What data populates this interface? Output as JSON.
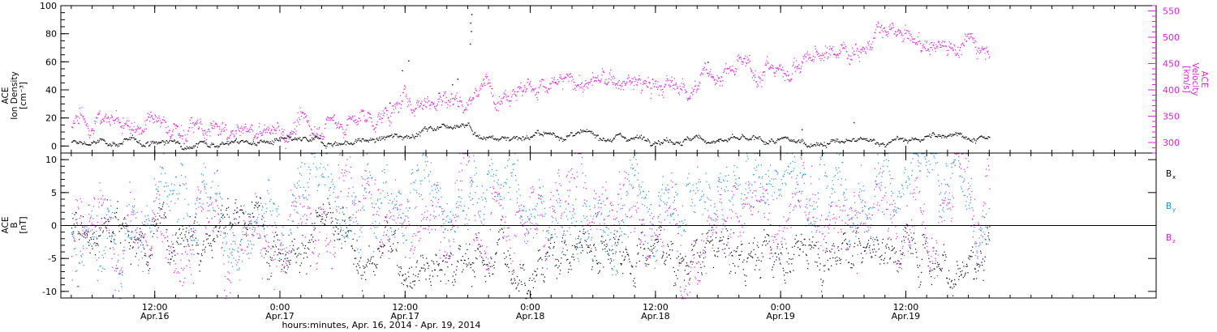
{
  "chart_data": [
    {
      "type": "scatter",
      "panel": "top",
      "ylabel_left": [
        "ACE",
        "Ion Density",
        "[cm⁻³]"
      ],
      "ylabel_right": [
        "ACE",
        "Velocity",
        "[km/s]"
      ],
      "ylim_left": [
        -5,
        100
      ],
      "yticks_left": [
        0,
        20,
        40,
        60,
        80,
        100
      ],
      "ylim_right": [
        280,
        560
      ],
      "yticks_right": [
        300,
        350,
        400,
        450,
        500,
        550
      ],
      "colors": {
        "density": "#000000",
        "velocity": "#e020e0"
      },
      "series": [
        {
          "name": "Ion Density",
          "axis": "left",
          "color": "#000000",
          "anchors": [
            [
              -8,
              2
            ],
            [
              -3,
              3
            ],
            [
              0,
              3
            ],
            [
              6,
              3
            ],
            [
              12,
              3
            ],
            [
              18,
              3
            ],
            [
              22,
              5
            ],
            [
              24,
              8
            ],
            [
              26,
              12
            ],
            [
              28,
              16
            ],
            [
              30,
              18
            ],
            [
              30.5,
              10
            ],
            [
              31,
              7
            ],
            [
              33,
              6
            ],
            [
              36,
              8
            ],
            [
              40,
              8
            ],
            [
              44,
              7
            ],
            [
              48,
              6
            ],
            [
              52,
              5
            ],
            [
              56,
              4
            ],
            [
              60,
              3
            ],
            [
              64,
              3
            ],
            [
              68,
              3
            ],
            [
              72,
              4
            ],
            [
              74,
              6
            ],
            [
              76,
              8
            ],
            [
              77,
              12
            ],
            [
              78,
              6
            ],
            [
              80,
              4
            ]
          ],
          "noise": 1.5,
          "count": 1300,
          "outliers": [
            [
              22.5,
              31
            ],
            [
              23.7,
              54
            ],
            [
              24.3,
              61
            ],
            [
              27.2,
              38
            ],
            [
              28.5,
              44
            ],
            [
              29,
              48
            ],
            [
              30.2,
              73
            ],
            [
              30.3,
              82
            ],
            [
              30.35,
              94
            ],
            [
              30.25,
              88
            ],
            [
              53,
              60
            ],
            [
              54,
              5
            ],
            [
              62,
              12
            ],
            [
              67,
              17
            ]
          ]
        },
        {
          "name": "Velocity",
          "axis": "right",
          "color": "#e020e0",
          "anchors": [
            [
              -8,
              345
            ],
            [
              -3,
              340
            ],
            [
              0,
              330
            ],
            [
              6,
              320
            ],
            [
              9,
              315
            ],
            [
              12,
              325
            ],
            [
              16,
              335
            ],
            [
              20,
              345
            ],
            [
              22,
              350
            ],
            [
              24,
              375
            ],
            [
              26,
              385
            ],
            [
              28,
              385
            ],
            [
              30,
              385
            ],
            [
              31,
              405
            ],
            [
              34,
              410
            ],
            [
              38,
              405
            ],
            [
              40,
              415
            ],
            [
              44,
              415
            ],
            [
              48,
              405
            ],
            [
              50,
              405
            ],
            [
              52,
              415
            ],
            [
              54,
              435
            ],
            [
              57,
              440
            ],
            [
              60,
              440
            ],
            [
              62,
              455
            ],
            [
              64,
              465
            ],
            [
              66,
              480
            ],
            [
              68,
              490
            ],
            [
              70,
              505
            ],
            [
              72,
              495
            ],
            [
              74,
              485
            ],
            [
              76,
              490
            ],
            [
              78,
              490
            ],
            [
              80,
              490
            ]
          ],
          "noise": 12,
          "count": 1800
        }
      ]
    },
    {
      "type": "scatter",
      "panel": "bottom",
      "ylabel": [
        "ACE",
        "B",
        "[nT]"
      ],
      "ylim": [
        -11,
        11
      ],
      "yticks": [
        -10,
        -5,
        0,
        5,
        10
      ],
      "zero_line": true,
      "legend_placement": "right",
      "colors": {
        "bx": "#000000",
        "by": "#1a90e0",
        "bz": "#e020e0"
      },
      "series": [
        {
          "name": "Bx",
          "legend_label": "B",
          "legend_sub": "x",
          "color": "#000000",
          "anchors": [
            [
              -8,
              0
            ],
            [
              -4,
              -1
            ],
            [
              0,
              -1
            ],
            [
              4,
              1
            ],
            [
              8,
              1
            ],
            [
              10,
              0
            ],
            [
              12,
              -2
            ],
            [
              14,
              -1
            ],
            [
              16,
              0
            ],
            [
              18,
              -3
            ],
            [
              20,
              -5
            ],
            [
              22,
              -4
            ],
            [
              24,
              -5
            ],
            [
              26,
              -4
            ],
            [
              28,
              -6
            ],
            [
              30,
              -5
            ],
            [
              32,
              -4
            ],
            [
              36,
              -6
            ],
            [
              40,
              -3
            ],
            [
              44,
              -2
            ],
            [
              48,
              -3
            ],
            [
              52,
              -5
            ],
            [
              56,
              -4
            ],
            [
              60,
              -4
            ],
            [
              64,
              -3
            ],
            [
              66,
              -2
            ],
            [
              68,
              -3
            ],
            [
              70,
              -3
            ],
            [
              72,
              -2
            ],
            [
              74,
              -4
            ],
            [
              76,
              -5
            ],
            [
              78,
              -5
            ],
            [
              80,
              -5
            ]
          ],
          "noise": 2.2,
          "count": 1600
        },
        {
          "name": "By",
          "legend_label": "B",
          "legend_sub": "y",
          "color": "#1a90e0",
          "anchors": [
            [
              -8,
              -2
            ],
            [
              -4,
              1
            ],
            [
              0,
              2
            ],
            [
              2,
              0
            ],
            [
              6,
              2
            ],
            [
              10,
              3
            ],
            [
              12,
              0
            ],
            [
              14,
              6
            ],
            [
              16,
              6
            ],
            [
              18,
              5
            ],
            [
              20,
              7
            ],
            [
              22,
              4
            ],
            [
              24,
              2
            ],
            [
              26,
              8
            ],
            [
              28,
              6
            ],
            [
              30,
              4
            ],
            [
              32,
              6
            ],
            [
              36,
              2
            ],
            [
              40,
              0
            ],
            [
              44,
              -2
            ],
            [
              46,
              5
            ],
            [
              48,
              3
            ],
            [
              50,
              4
            ],
            [
              52,
              6
            ],
            [
              56,
              4
            ],
            [
              58,
              8
            ],
            [
              60,
              8
            ],
            [
              62,
              6
            ],
            [
              66,
              9
            ],
            [
              70,
              7
            ],
            [
              72,
              7
            ],
            [
              74,
              6
            ],
            [
              76,
              5
            ],
            [
              78,
              3
            ],
            [
              80,
              3
            ]
          ],
          "noise": 3.2,
          "count": 1600
        },
        {
          "name": "Bz",
          "legend_label": "B",
          "legend_sub": "z",
          "color": "#e020e0",
          "anchors": [
            [
              -8,
              -3
            ],
            [
              -4,
              -2
            ],
            [
              0,
              -2
            ],
            [
              4,
              -1
            ],
            [
              6,
              0
            ],
            [
              8,
              -4
            ],
            [
              10,
              -1
            ],
            [
              12,
              -1
            ],
            [
              14,
              -3
            ],
            [
              16,
              0
            ],
            [
              18,
              4
            ],
            [
              20,
              2
            ],
            [
              22,
              0
            ],
            [
              24,
              -2
            ],
            [
              26,
              0
            ],
            [
              28,
              3
            ],
            [
              30,
              4
            ],
            [
              32,
              2
            ],
            [
              36,
              0
            ],
            [
              40,
              5
            ],
            [
              44,
              6
            ],
            [
              46,
              3
            ],
            [
              48,
              2
            ],
            [
              50,
              0
            ],
            [
              52,
              1
            ],
            [
              54,
              3
            ],
            [
              56,
              1
            ],
            [
              58,
              0
            ],
            [
              60,
              0
            ],
            [
              62,
              3
            ],
            [
              64,
              0
            ],
            [
              66,
              -1
            ],
            [
              68,
              0
            ],
            [
              70,
              3
            ],
            [
              72,
              2
            ],
            [
              74,
              -1
            ],
            [
              76,
              3
            ],
            [
              78,
              5
            ],
            [
              80,
              5
            ]
          ],
          "noise": 3.8,
          "count": 1600
        }
      ]
    }
  ],
  "time_axis": {
    "range_hours": [
      -9,
      96
    ],
    "major_ticks": [
      {
        "h": 0,
        "time": "12:00",
        "date": "Apr.16"
      },
      {
        "h": 12,
        "time": "0:00",
        "date": "Apr.17"
      },
      {
        "h": 24,
        "time": "12:00",
        "date": "Apr.17"
      },
      {
        "h": 36,
        "time": "0:00",
        "date": "Apr.18"
      },
      {
        "h": 48,
        "time": "12:00",
        "date": "Apr.18"
      },
      {
        "h": 60,
        "time": "0:00",
        "date": "Apr.19"
      },
      {
        "h": 72,
        "time": "12:00",
        "date": "Apr.19"
      }
    ],
    "xlabel": "hours:minutes, Apr. 16, 2014 - Apr. 19, 2014"
  }
}
